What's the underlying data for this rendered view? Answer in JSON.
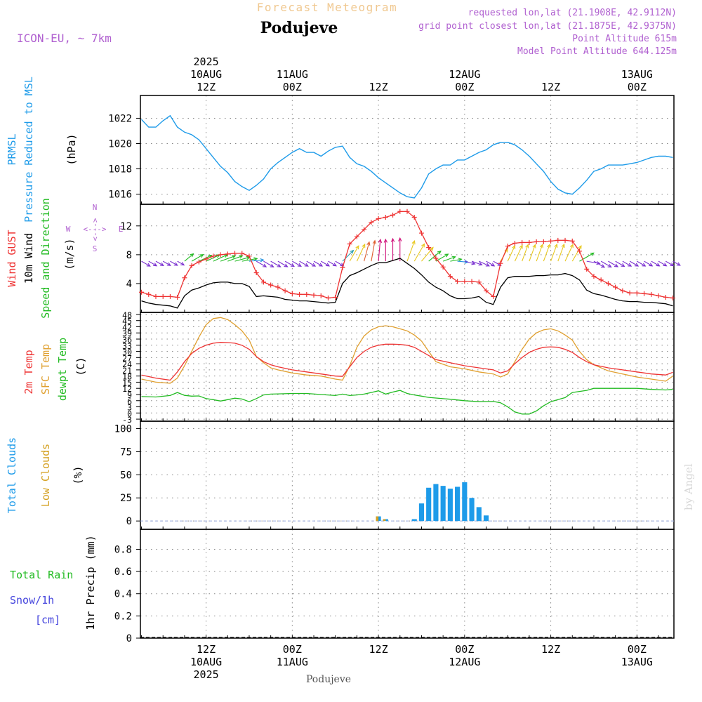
{
  "header": {
    "subtitle": "Forecast Meteogram",
    "location": "Podujeve",
    "model": "ICON-EU, ~ 7km",
    "requested": "requested lon,lat (21.1908E, 42.9112N)",
    "grid_point": "grid point closest lon,lat (21.1875E, 42.9375N)",
    "point_altitude": "Point Altitude 615m",
    "model_altitude": "Model Point Altitude 644.125m"
  },
  "footer": {
    "location": "Podujeve",
    "credit": "by Angel"
  },
  "colors": {
    "pressure": "#1e9be9",
    "gust": "#ee3333",
    "wind": "#000000",
    "temp": "#ee3333",
    "sfc": "#e0a030",
    "dewpt": "#22bb22",
    "total_clouds": "#1e9be9",
    "low_clouds": "#d4a020",
    "rain": "#22bb22",
    "snow": "#4444dd",
    "purple": "#b060d0"
  },
  "time_axis": {
    "top_labels": [
      {
        "x": 12,
        "lines": [
          "2025",
          "10AUG",
          "12Z"
        ]
      },
      {
        "x": 24,
        "lines": [
          "11AUG",
          "00Z"
        ]
      },
      {
        "x": 36,
        "lines": [
          "12Z"
        ]
      },
      {
        "x": 48,
        "lines": [
          "12AUG",
          "00Z"
        ]
      },
      {
        "x": 60,
        "lines": [
          "12Z"
        ]
      },
      {
        "x": 72,
        "lines": [
          "13AUG",
          "00Z"
        ]
      }
    ],
    "bottom_labels": [
      {
        "x": 12,
        "lines": [
          "12Z",
          "10AUG",
          "2025"
        ]
      },
      {
        "x": 24,
        "lines": [
          "00Z",
          "11AUG"
        ]
      },
      {
        "x": 36,
        "lines": [
          "12Z"
        ]
      },
      {
        "x": 48,
        "lines": [
          "00Z",
          "12AUG"
        ]
      },
      {
        "x": 60,
        "lines": [
          "12Z"
        ]
      },
      {
        "x": 72,
        "lines": [
          "00Z",
          "13AUG"
        ]
      }
    ]
  },
  "panels": {
    "pressure": {
      "labels": [
        "PRMSL",
        "Pressure Reduced to MSL"
      ],
      "unit": "(hPa)",
      "yticks": [
        "1016",
        "1018",
        "1020",
        "1022"
      ]
    },
    "wind": {
      "labels": [
        "Wind GUST",
        "10m Wind",
        "Speed and Direction"
      ],
      "unit": "(m/s)",
      "yticks": [
        "4",
        "8",
        "12"
      ],
      "compass": {
        "n": "N",
        "s": "S",
        "e": "E",
        "w": "W",
        "arrow_h": "<--->",
        "arrow_v": "<--->"
      }
    },
    "temperature": {
      "labels": [
        "2m Temp",
        "SFC Temp",
        "dewpt Temp"
      ],
      "unit": "(C)",
      "yticks": [
        "-3",
        "0",
        "3",
        "6",
        "9",
        "12",
        "15",
        "18",
        "21",
        "24",
        "27",
        "30",
        "33",
        "36",
        "39",
        "42",
        "45",
        "48"
      ]
    },
    "clouds": {
      "labels": [
        "Total Clouds",
        "Low Clouds"
      ],
      "unit": "(%)",
      "yticks": [
        "0",
        "25",
        "50",
        "75",
        "100"
      ]
    },
    "precip": {
      "labels": [
        "Total  Rain",
        "Snow/1h",
        "[cm]"
      ],
      "unit": "1hr Precip (mm)",
      "yticks": [
        "0",
        "0.2",
        "0.4",
        "0.6",
        "0.8"
      ]
    }
  },
  "chart_data": [
    {
      "type": "line",
      "name": "PRMSL",
      "x_unit": "hours since 2025-08-10 00Z",
      "ylim": [
        1015.2,
        1023.8
      ],
      "x": [
        3,
        4,
        5,
        6,
        7,
        8,
        9,
        10,
        11,
        12,
        13,
        14,
        15,
        16,
        17,
        18,
        19,
        20,
        21,
        22,
        23,
        24,
        25,
        26,
        27,
        28,
        29,
        30,
        31,
        32,
        33,
        34,
        35,
        36,
        37,
        38,
        39,
        40,
        41,
        42,
        43,
        44,
        45,
        46,
        47,
        48,
        49,
        50,
        51,
        52,
        53,
        54,
        55,
        56,
        57,
        58,
        59,
        60,
        61,
        62,
        63,
        64,
        65,
        66,
        67,
        68,
        69,
        70,
        71,
        72,
        73,
        74,
        75,
        76,
        77
      ],
      "values": [
        1021.9,
        1021.3,
        1021.3,
        1021.8,
        1022.2,
        1021.3,
        1020.9,
        1020.7,
        1020.3,
        1019.6,
        1018.9,
        1018.2,
        1017.7,
        1017.0,
        1016.6,
        1016.3,
        1016.7,
        1017.2,
        1018.0,
        1018.5,
        1018.9,
        1019.3,
        1019.6,
        1019.3,
        1019.3,
        1019.0,
        1019.4,
        1019.7,
        1019.8,
        1018.9,
        1018.4,
        1018.2,
        1017.8,
        1017.3,
        1016.9,
        1016.5,
        1016.1,
        1015.8,
        1015.7,
        1016.5,
        1017.6,
        1018.0,
        1018.3,
        1018.3,
        1018.7,
        1018.7,
        1019.0,
        1019.3,
        1019.5,
        1019.9,
        1020.1,
        1020.1,
        1019.9,
        1019.5,
        1019.0,
        1018.4,
        1017.8,
        1017.0,
        1016.4,
        1016.1,
        1016.0,
        1016.5,
        1017.1,
        1017.8,
        1018.0,
        1018.3,
        1018.3,
        1018.3,
        1018.4,
        1018.5,
        1018.7,
        1018.9,
        1019.0,
        1019.0,
        1018.9
      ]
    },
    {
      "type": "line",
      "name": "Wind GUST / 10m Wind",
      "x_unit": "hours since 2025-08-10 00Z",
      "ylim": [
        0,
        15
      ],
      "x": [
        3,
        4,
        5,
        6,
        7,
        8,
        9,
        10,
        11,
        12,
        13,
        14,
        15,
        16,
        17,
        18,
        19,
        20,
        21,
        22,
        23,
        24,
        25,
        26,
        27,
        28,
        29,
        30,
        31,
        32,
        33,
        34,
        35,
        36,
        37,
        38,
        39,
        40,
        41,
        42,
        43,
        44,
        45,
        46,
        47,
        48,
        49,
        50,
        51,
        52,
        53,
        54,
        55,
        56,
        57,
        58,
        59,
        60,
        61,
        62,
        63,
        64,
        65,
        66,
        67,
        68,
        69,
        70,
        71,
        72,
        73,
        74,
        75,
        76,
        77
      ],
      "series": [
        {
          "name": "Wind GUST",
          "values": [
            2.8,
            2.5,
            2.2,
            2.2,
            2.2,
            2.1,
            4.8,
            6.5,
            7.0,
            7.4,
            7.8,
            8.0,
            8.1,
            8.2,
            8.2,
            7.8,
            5.5,
            4.2,
            3.8,
            3.5,
            3.0,
            2.6,
            2.5,
            2.5,
            2.4,
            2.3,
            2.0,
            2.1,
            6.2,
            9.5,
            10.5,
            11.5,
            12.5,
            13.0,
            13.2,
            13.5,
            14.0,
            14.0,
            13.2,
            11.0,
            9.0,
            7.5,
            6.3,
            5.0,
            4.3,
            4.3,
            4.3,
            4.2,
            3.0,
            2.2,
            6.8,
            9.2,
            9.6,
            9.7,
            9.7,
            9.8,
            9.8,
            9.9,
            10.0,
            10.0,
            9.9,
            8.5,
            6.0,
            5.0,
            4.5,
            4.0,
            3.5,
            3.0,
            2.7,
            2.7,
            2.6,
            2.5,
            2.3,
            2.1,
            2.0
          ]
        },
        {
          "name": "10m Wind",
          "values": [
            1.6,
            1.3,
            1.1,
            1.0,
            0.9,
            0.6,
            2.3,
            3.1,
            3.4,
            3.8,
            4.1,
            4.2,
            4.2,
            4.0,
            4.0,
            3.6,
            2.2,
            2.3,
            2.2,
            2.1,
            1.8,
            1.7,
            1.6,
            1.6,
            1.5,
            1.4,
            1.3,
            1.4,
            4.0,
            5.1,
            5.5,
            6.0,
            6.5,
            6.9,
            6.9,
            7.2,
            7.5,
            6.8,
            6.1,
            5.2,
            4.2,
            3.5,
            3.0,
            2.3,
            1.9,
            1.9,
            2.0,
            2.2,
            1.4,
            1.1,
            3.5,
            4.8,
            5.0,
            5.0,
            5.0,
            5.1,
            5.1,
            5.2,
            5.2,
            5.4,
            5.1,
            4.5,
            3.1,
            2.6,
            2.4,
            2.1,
            1.8,
            1.6,
            1.5,
            1.5,
            1.4,
            1.4,
            1.3,
            1.2,
            0.9
          ]
        }
      ],
      "direction_deg": [
        300,
        300,
        300,
        300,
        300,
        300,
        230,
        240,
        245,
        245,
        245,
        250,
        250,
        255,
        260,
        265,
        300,
        300,
        300,
        300,
        300,
        300,
        300,
        300,
        300,
        300,
        300,
        300,
        225,
        210,
        205,
        195,
        190,
        185,
        180,
        180,
        180,
        200,
        210,
        220,
        230,
        240,
        250,
        260,
        275,
        285,
        290,
        295,
        300,
        300,
        210,
        205,
        205,
        200,
        200,
        200,
        200,
        200,
        200,
        205,
        210,
        240,
        280,
        300,
        300,
        300,
        300,
        300,
        300,
        300,
        300,
        300,
        300,
        300,
        300
      ]
    },
    {
      "type": "line",
      "name": "Temperature",
      "x_unit": "hours since 2025-08-10 00Z",
      "ylim": [
        -4,
        49
      ],
      "x": [
        3,
        5,
        7,
        8,
        9,
        10,
        11,
        12,
        13,
        14,
        15,
        16,
        17,
        18,
        19,
        20,
        21,
        22,
        24,
        26,
        28,
        30,
        31,
        32,
        33,
        34,
        35,
        36,
        37,
        38,
        39,
        40,
        41,
        42,
        43,
        44,
        46,
        48,
        50,
        52,
        53,
        54,
        55,
        56,
        57,
        58,
        59,
        60,
        61,
        62,
        63,
        64,
        65,
        66,
        68,
        70,
        72,
        74,
        76,
        77
      ],
      "series": [
        {
          "name": "2m Temp",
          "values": [
            18.5,
            17,
            16,
            20,
            25,
            29,
            31.5,
            33,
            34,
            34.4,
            34.3,
            34,
            33,
            31,
            27.5,
            25,
            23.5,
            22.5,
            21,
            20,
            19,
            18,
            17.8,
            22.5,
            27,
            30,
            32,
            33,
            33.5,
            33.5,
            33.4,
            33,
            32,
            30,
            28,
            26,
            24.5,
            23,
            22,
            21,
            19.5,
            20.5,
            24,
            27,
            29.5,
            31,
            32,
            32.2,
            32,
            31,
            29.5,
            27,
            25,
            23.5,
            22,
            21,
            20,
            19,
            18.5,
            19.8
          ]
        },
        {
          "name": "SFC Temp",
          "values": [
            16.5,
            15,
            14.5,
            17,
            23,
            30,
            37,
            43,
            46,
            46.5,
            45.5,
            43,
            40,
            35.5,
            27.5,
            24.5,
            22,
            21,
            19.5,
            18.5,
            18,
            16.5,
            16,
            23,
            32,
            37.5,
            40.5,
            42,
            42.5,
            42,
            41,
            40,
            38,
            35,
            30,
            25,
            22.5,
            21.5,
            20,
            19,
            17.5,
            19,
            25,
            31,
            36,
            39,
            40.5,
            41,
            40,
            38,
            35.5,
            30,
            26,
            23.5,
            20.5,
            19,
            17.5,
            16.5,
            15.5,
            18
          ]
        },
        {
          "name": "dewpt Temp",
          "values": [
            8,
            7.8,
            8.5,
            10,
            8.6,
            8.2,
            8.3,
            7,
            6.5,
            5.8,
            6.5,
            7.2,
            6.8,
            5.5,
            7,
            8.8,
            9.2,
            9.3,
            9.5,
            9.5,
            9,
            8.5,
            9.2,
            8.5,
            8.8,
            9.2,
            10,
            10.8,
            9.2,
            10.2,
            11,
            9.5,
            8.8,
            8.2,
            7.6,
            7.3,
            6.7,
            6,
            5.5,
            5.6,
            5,
            3,
            0.5,
            -0.5,
            -0.5,
            1,
            3.5,
            5.5,
            6.5,
            7.5,
            10,
            10.5,
            11,
            12,
            12,
            12,
            12,
            11.5,
            11.2,
            11.5
          ]
        }
      ]
    },
    {
      "type": "bar",
      "name": "Clouds",
      "x_unit": "hours since 2025-08-10 00Z",
      "ylim": [
        -9,
        108
      ],
      "series": [
        {
          "name": "Total Clouds",
          "x": [
            36,
            37,
            41,
            42,
            43,
            44,
            45,
            46,
            47,
            48,
            49,
            50,
            51,
            52
          ],
          "values": [
            5,
            2,
            2,
            19,
            36,
            40,
            38,
            35,
            37,
            42,
            25,
            15,
            6,
            0
          ]
        },
        {
          "name": "Low Clouds",
          "x": [
            36,
            37
          ],
          "values": [
            5,
            2
          ]
        }
      ]
    },
    {
      "type": "bar",
      "name": "1hr Precip",
      "x_unit": "hours since 2025-08-10 00Z",
      "ylim": [
        0,
        0.98
      ],
      "series": [
        {
          "name": "Total Rain",
          "x": [],
          "values": []
        },
        {
          "name": "Snow/1h",
          "x": [],
          "values": []
        }
      ]
    }
  ]
}
